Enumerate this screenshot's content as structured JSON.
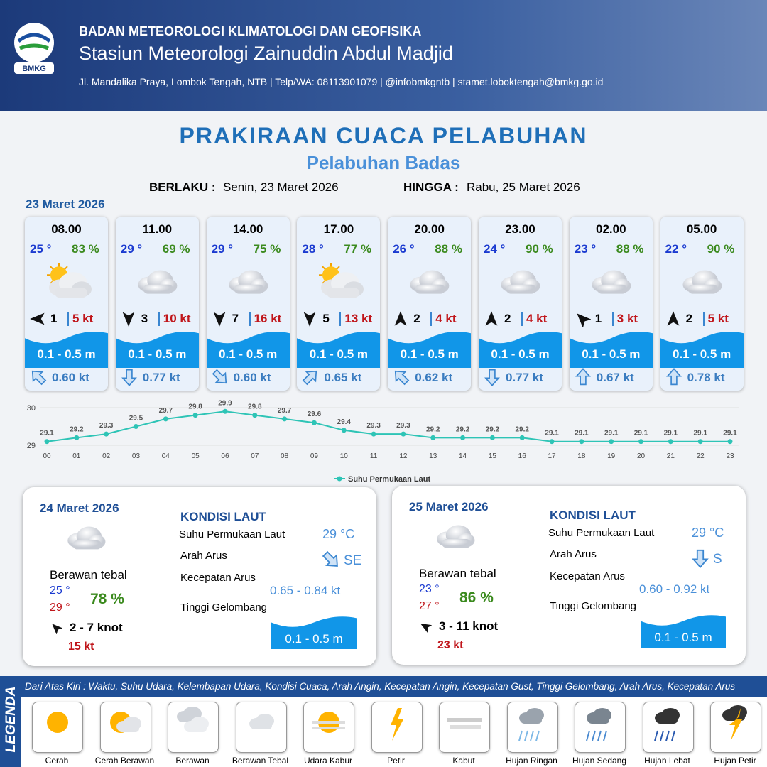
{
  "header": {
    "organization": "BADAN METEOROLOGI KLIMATOLOGI DAN GEOFISIKA",
    "station": "Stasiun Meteorologi Zainuddin Abdul Madjid",
    "contact": "Jl. Mandalika Praya, Lombok Tengah, NTB | Telp/WA: 08113901079 | @infobmkgntb | stamet.loboktengah@bmkg.go.id",
    "logo_text": "BMKG"
  },
  "title": "PRAKIRAAN CUACA PELABUHAN",
  "subtitle": "Pelabuhan Badas",
  "validity": {
    "from_label": "BERLAKU :",
    "from": "Senin, 23 Maret 2026",
    "until_label": "HINGGA :",
    "until": "Rabu, 25 Maret 2026"
  },
  "day1": {
    "date": "23 Maret 2026",
    "forecasts": [
      {
        "time": "08.00",
        "temp": "25 °",
        "humidity": "83 %",
        "wind": "1",
        "gust": "5 kt",
        "wave": "0.1 - 0.5 m",
        "current": "0.60 kt"
      },
      {
        "time": "11.00",
        "temp": "29 °",
        "humidity": "69 %",
        "wind": "3",
        "gust": "10 kt",
        "wave": "0.1 - 0.5 m",
        "current": "0.77 kt"
      },
      {
        "time": "14.00",
        "temp": "29 °",
        "humidity": "75 %",
        "wind": "7",
        "gust": "16 kt",
        "wave": "0.1 - 0.5 m",
        "current": "0.60 kt"
      },
      {
        "time": "17.00",
        "temp": "28 °",
        "humidity": "77 %",
        "wind": "5",
        "gust": "13 kt",
        "wave": "0.1 - 0.5 m",
        "current": "0.65 kt"
      },
      {
        "time": "20.00",
        "temp": "26 °",
        "humidity": "88 %",
        "wind": "2",
        "gust": "4 kt",
        "wave": "0.1 - 0.5 m",
        "current": "0.62 kt"
      },
      {
        "time": "23.00",
        "temp": "24 °",
        "humidity": "90 %",
        "wind": "2",
        "gust": "4 kt",
        "wave": "0.1 - 0.5 m",
        "current": "0.77 kt"
      },
      {
        "time": "02.00",
        "temp": "23 °",
        "humidity": "88 %",
        "wind": "1",
        "gust": "3 kt",
        "wave": "0.1 - 0.5 m",
        "current": "0.67 kt"
      },
      {
        "time": "05.00",
        "temp": "22 °",
        "humidity": "90 %",
        "wind": "2",
        "gust": "5 kt",
        "wave": "0.1 - 0.5 m",
        "current": "0.78 kt"
      }
    ]
  },
  "chart_data": {
    "type": "line",
    "categories": [
      "00",
      "01",
      "02",
      "03",
      "04",
      "05",
      "06",
      "07",
      "08",
      "09",
      "10",
      "11",
      "12",
      "13",
      "14",
      "15",
      "16",
      "17",
      "18",
      "19",
      "20",
      "21",
      "22",
      "23"
    ],
    "series": [
      {
        "name": "Suhu Permukaan Laut",
        "color": "#2ec4b6",
        "values": [
          29.1,
          29.2,
          29.3,
          29.5,
          29.7,
          29.8,
          29.9,
          29.8,
          29.7,
          29.6,
          29.4,
          29.3,
          29.3,
          29.2,
          29.2,
          29.2,
          29.2,
          29.1,
          29.1,
          29.1,
          29.1,
          29.1,
          29.1,
          29.1
        ]
      }
    ],
    "ylim": [
      29,
      30
    ],
    "yticks": [
      29,
      30
    ],
    "grid": true
  },
  "days": [
    {
      "date": "24 Maret 2026",
      "condition": "Berawan tebal",
      "temp_min": "25 °",
      "temp_max": "29 °",
      "humidity": "78 %",
      "wind": "2 - 7 knot",
      "gust": "15 kt",
      "sea_title": "KONDISI LAUT",
      "sst_label": "Suhu Permukaan Laut",
      "sst": "29 °C",
      "current_dir_label": "Arah Arus",
      "current_dir": "SE",
      "current_speed_label": "Kecepatan Arus",
      "current_speed": "0.65 - 0.84 kt",
      "wave_label": "Tinggi Gelombang",
      "wave": "0.1 - 0.5 m"
    },
    {
      "date": "25 Maret 2026",
      "condition": "Berawan tebal",
      "temp_min": "23 °",
      "temp_max": "27 °",
      "humidity": "86 %",
      "wind": "3 - 11 knot",
      "gust": "23 kt",
      "sea_title": "KONDISI LAUT",
      "sst_label": "Suhu Permukaan Laut",
      "sst": "29 °C",
      "current_dir_label": "Arah Arus",
      "current_dir": "S",
      "current_speed_label": "Kecepatan Arus",
      "current_speed": "0.60 - 0.92 kt",
      "wave_label": "Tinggi Gelombang",
      "wave": "0.1 - 0.5 m"
    }
  ],
  "legend": {
    "title": "LEGENDA",
    "description": "Dari Atas Kiri : Waktu, Suhu Udara, Kelembapan Udara, Kondisi Cuaca, Arah Angin, Kecepatan Angin, Kecepatan Gust, Tinggi Gelombang, Arah Arus, Kecepatan Arus",
    "items": [
      "Cerah",
      "Cerah Berawan",
      "Berawan",
      "Berawan Tebal",
      "Udara Kabur",
      "Petir",
      "Kabut",
      "Hujan Ringan",
      "Hujan Sedang",
      "Hujan Lebat",
      "Hujan Petir"
    ]
  }
}
